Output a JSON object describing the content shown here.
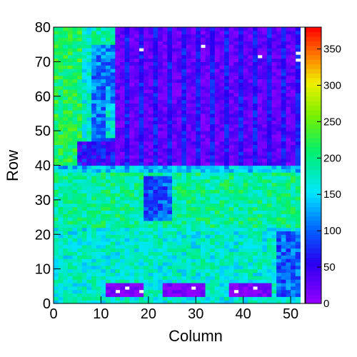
{
  "chart_data": {
    "type": "heatmap",
    "title": "",
    "xlabel": "Column",
    "ylabel": "Row",
    "xlim": [
      0,
      53
    ],
    "ylim": [
      0,
      80
    ],
    "zlim": [
      0,
      380
    ],
    "x_ticks": [
      0,
      10,
      20,
      30,
      40,
      50
    ],
    "y_ticks": [
      0,
      10,
      20,
      30,
      40,
      50,
      60,
      70,
      80
    ],
    "z_ticks": [
      0,
      50,
      100,
      150,
      200,
      250,
      300,
      350
    ],
    "grid": false,
    "colorbar": "right",
    "palette": "rainbow",
    "regions": [
      {
        "x": [
          0,
          53
        ],
        "y": [
          0,
          80
        ],
        "value": 185,
        "note": "background"
      },
      {
        "x": [
          0,
          6
        ],
        "y": [
          40,
          80
        ],
        "value": 215
      },
      {
        "x": [
          6,
          8
        ],
        "y": [
          40,
          80
        ],
        "value": 170
      },
      {
        "x": [
          8,
          13
        ],
        "y": [
          46,
          75
        ],
        "value": 110
      },
      {
        "x": [
          11,
          14
        ],
        "y": [
          48,
          58
        ],
        "value": 160
      },
      {
        "x": [
          5,
          15
        ],
        "y": [
          40,
          47
        ],
        "value": 60
      },
      {
        "x": [
          13,
          53
        ],
        "y": [
          39,
          80
        ],
        "value": 25
      },
      {
        "x": [
          0,
          53
        ],
        "y": [
          38,
          40
        ],
        "value": 140
      },
      {
        "x": [
          0,
          53
        ],
        "y": [
          22,
          38
        ],
        "value": 195
      },
      {
        "x": [
          19,
          25
        ],
        "y": [
          24,
          37
        ],
        "value": 95
      },
      {
        "x": [
          0,
          53
        ],
        "y": [
          20,
          22
        ],
        "value": 165
      },
      {
        "x": [
          0,
          53
        ],
        "y": [
          0,
          20
        ],
        "value": 170
      },
      {
        "x": [
          47,
          52
        ],
        "y": [
          2,
          21
        ],
        "value": 100
      },
      {
        "x": [
          11,
          19
        ],
        "y": [
          2,
          6
        ],
        "value": 10
      },
      {
        "x": [
          23,
          32
        ],
        "y": [
          2,
          6
        ],
        "value": 10
      },
      {
        "x": [
          37,
          46
        ],
        "y": [
          2,
          6
        ],
        "value": 10
      }
    ],
    "empty_cells": [
      [
        18,
        73
      ],
      [
        31,
        74
      ],
      [
        43,
        71
      ],
      [
        51,
        72
      ],
      [
        51,
        70
      ],
      [
        13,
        3
      ],
      [
        15,
        4
      ],
      [
        18,
        3
      ],
      [
        29,
        4
      ],
      [
        42,
        4
      ],
      [
        38,
        3
      ]
    ]
  }
}
